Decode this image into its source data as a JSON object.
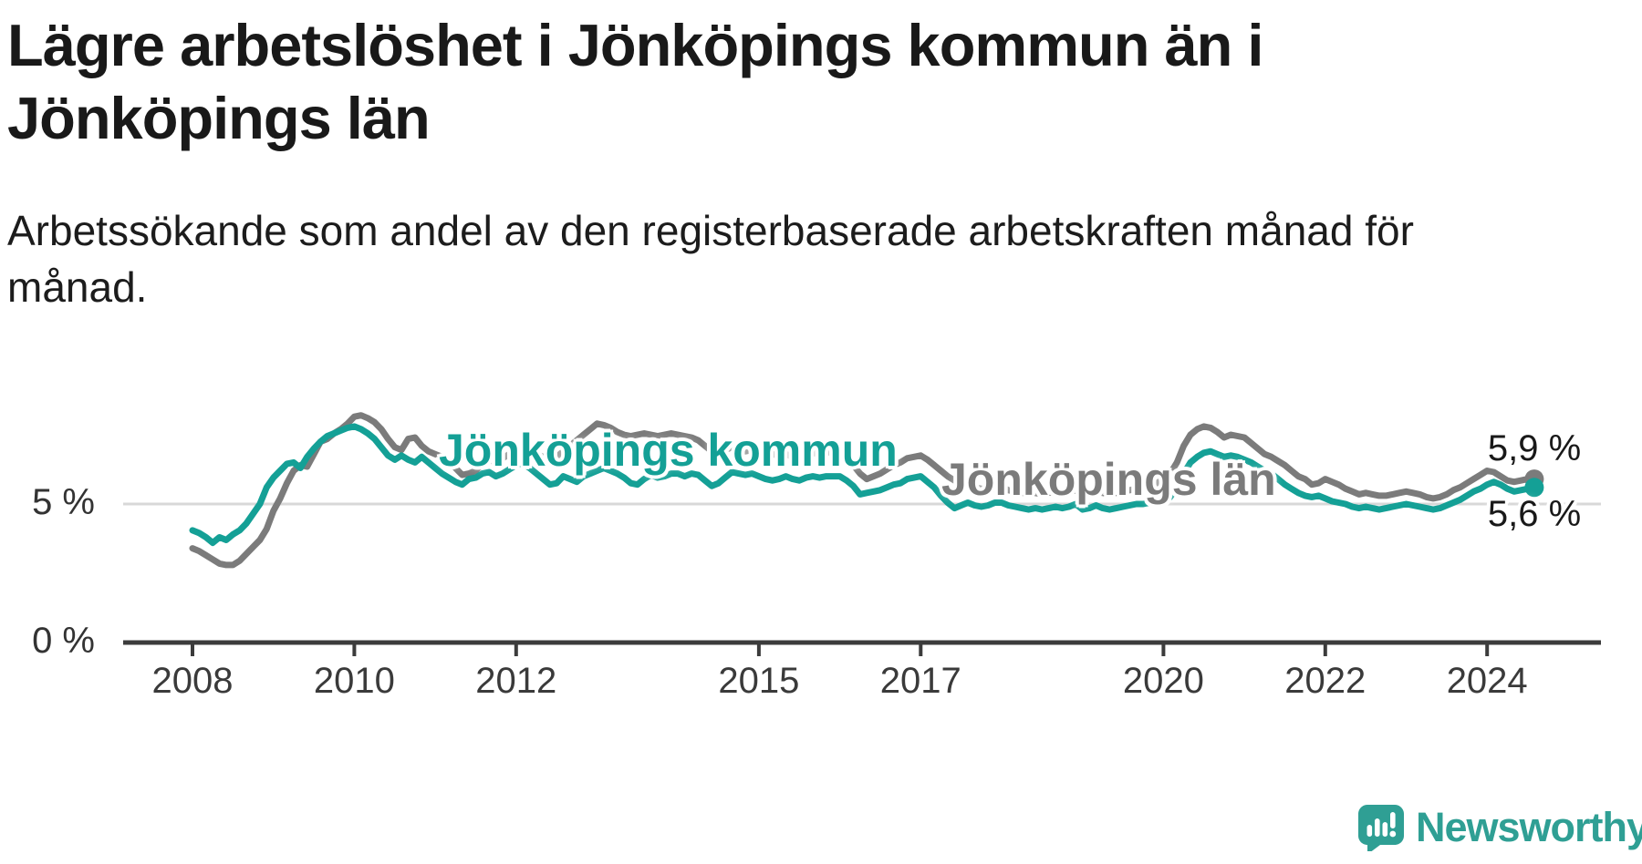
{
  "header": {
    "title": "Lägre arbetslöshet i Jönköpings kommun än i Jönköpings län",
    "subtitle": "Arbetssökande som andel av den registerbaserade arbetskraften månad för månad."
  },
  "chart_data": {
    "type": "line",
    "unit": "%",
    "frequency": "monthly",
    "x_start": "2008-01",
    "x_end": "2024-08",
    "ylim": [
      0,
      9
    ],
    "grid": "single-line-at-5",
    "y_ticks": [
      {
        "value": 5,
        "label": "5 %"
      },
      {
        "value": 0,
        "label": "0 %"
      }
    ],
    "x_tick_years": [
      2008,
      2010,
      2012,
      2015,
      2017,
      2020,
      2022,
      2024
    ],
    "colors": {
      "axis": "#3c3c3c",
      "gridline": "#d8d8d8",
      "tick_label": "#3a3a3a",
      "value_label": "#191919"
    },
    "series": [
      {
        "name": "Jönköpings län",
        "color": "#7b7b7b",
        "end_label": "5,9 %",
        "end_value": 5.9,
        "values": [
          3.4,
          3.3,
          3.15,
          3.0,
          2.85,
          2.8,
          2.8,
          2.95,
          3.2,
          3.45,
          3.7,
          4.1,
          4.75,
          5.2,
          5.75,
          6.2,
          6.4,
          6.35,
          6.8,
          7.25,
          7.35,
          7.55,
          7.7,
          7.9,
          8.15,
          8.2,
          8.1,
          7.95,
          7.7,
          7.35,
          7.05,
          6.95,
          7.35,
          7.4,
          7.1,
          6.9,
          6.8,
          6.7,
          6.5,
          6.3,
          6.05,
          6.1,
          6.2,
          6.45,
          6.6,
          6.5,
          6.65,
          6.8,
          6.9,
          7.0,
          6.9,
          6.8,
          6.7,
          6.65,
          6.7,
          6.9,
          7.1,
          7.3,
          7.5,
          7.7,
          7.9,
          7.85,
          7.75,
          7.6,
          7.5,
          7.45,
          7.5,
          7.55,
          7.5,
          7.45,
          7.5,
          7.55,
          7.5,
          7.45,
          7.4,
          7.3,
          7.1,
          6.9,
          6.85,
          6.95,
          7.05,
          6.95,
          6.9,
          6.95,
          7.0,
          6.9,
          6.8,
          6.75,
          6.8,
          6.7,
          6.65,
          6.75,
          6.85,
          6.8,
          6.85,
          6.9,
          6.85,
          6.65,
          6.4,
          6.1,
          5.9,
          6.0,
          6.1,
          6.25,
          6.4,
          6.5,
          6.65,
          6.7,
          6.75,
          6.6,
          6.4,
          6.2,
          6.0,
          5.85,
          5.75,
          5.65,
          5.6,
          5.55,
          5.5,
          5.55,
          5.6,
          5.5,
          5.45,
          5.4,
          5.35,
          5.4,
          5.35,
          5.4,
          5.45,
          5.4,
          5.45,
          5.5,
          5.35,
          5.4,
          5.45,
          5.4,
          5.35,
          5.4,
          5.45,
          5.5,
          5.55,
          5.6,
          5.65,
          5.75,
          5.9,
          6.1,
          6.5,
          7.1,
          7.5,
          7.7,
          7.8,
          7.75,
          7.6,
          7.4,
          7.5,
          7.45,
          7.4,
          7.2,
          7.0,
          6.8,
          6.7,
          6.55,
          6.4,
          6.2,
          6.0,
          5.9,
          5.7,
          5.75,
          5.9,
          5.8,
          5.7,
          5.55,
          5.45,
          5.35,
          5.4,
          5.35,
          5.3,
          5.3,
          5.35,
          5.4,
          5.45,
          5.4,
          5.35,
          5.25,
          5.2,
          5.25,
          5.35,
          5.5,
          5.6,
          5.75,
          5.9,
          6.05,
          6.2,
          6.15,
          6.0,
          5.85,
          5.8,
          5.85,
          5.9,
          5.9
        ]
      },
      {
        "name": "Jönköpings kommun",
        "color": "#14a096",
        "end_label": "5,6 %",
        "end_value": 5.6,
        "values": [
          4.05,
          3.95,
          3.8,
          3.6,
          3.8,
          3.7,
          3.9,
          4.05,
          4.3,
          4.65,
          5.0,
          5.6,
          5.95,
          6.2,
          6.45,
          6.5,
          6.3,
          6.7,
          7.0,
          7.25,
          7.45,
          7.55,
          7.65,
          7.75,
          7.8,
          7.7,
          7.55,
          7.35,
          7.05,
          6.75,
          6.6,
          6.75,
          6.6,
          6.5,
          6.7,
          6.5,
          6.3,
          6.1,
          5.95,
          5.8,
          5.7,
          5.9,
          5.95,
          6.1,
          6.15,
          6.0,
          6.1,
          6.25,
          6.4,
          6.45,
          6.3,
          6.1,
          5.9,
          5.7,
          5.75,
          6.0,
          5.9,
          5.8,
          6.0,
          6.1,
          6.2,
          6.3,
          6.2,
          6.1,
          5.95,
          5.75,
          5.7,
          5.9,
          6.05,
          5.95,
          6.0,
          6.1,
          6.1,
          6.0,
          6.1,
          6.05,
          5.85,
          5.65,
          5.75,
          5.95,
          6.15,
          6.1,
          6.05,
          6.1,
          6.0,
          5.9,
          5.85,
          5.9,
          6.0,
          5.9,
          5.85,
          5.95,
          6.0,
          5.95,
          6.0,
          6.0,
          6.0,
          5.85,
          5.65,
          5.35,
          5.4,
          5.45,
          5.5,
          5.6,
          5.7,
          5.75,
          5.9,
          5.95,
          6.0,
          5.8,
          5.6,
          5.3,
          5.05,
          4.85,
          4.95,
          5.05,
          4.95,
          4.9,
          4.95,
          5.05,
          5.05,
          4.95,
          4.9,
          4.85,
          4.8,
          4.85,
          4.8,
          4.85,
          4.9,
          4.85,
          4.9,
          5.0,
          4.8,
          4.85,
          4.95,
          4.85,
          4.8,
          4.85,
          4.9,
          4.95,
          5.0,
          5.0,
          5.05,
          5.1,
          5.15,
          5.25,
          5.6,
          6.1,
          6.5,
          6.7,
          6.85,
          6.9,
          6.8,
          6.7,
          6.75,
          6.7,
          6.6,
          6.5,
          6.35,
          6.2,
          6.1,
          5.9,
          5.7,
          5.55,
          5.4,
          5.3,
          5.25,
          5.3,
          5.2,
          5.1,
          5.05,
          5.0,
          4.9,
          4.85,
          4.9,
          4.85,
          4.8,
          4.85,
          4.9,
          4.95,
          5.0,
          4.95,
          4.9,
          4.85,
          4.8,
          4.85,
          4.95,
          5.05,
          5.15,
          5.3,
          5.45,
          5.55,
          5.7,
          5.8,
          5.7,
          5.55,
          5.45,
          5.5,
          5.55,
          5.6
        ]
      }
    ]
  },
  "branding": {
    "logo_text": "Newsworthy",
    "logo_icon": "newsworthy-speech-bubble-bar-chart-icon",
    "color": "#2f9f94"
  }
}
